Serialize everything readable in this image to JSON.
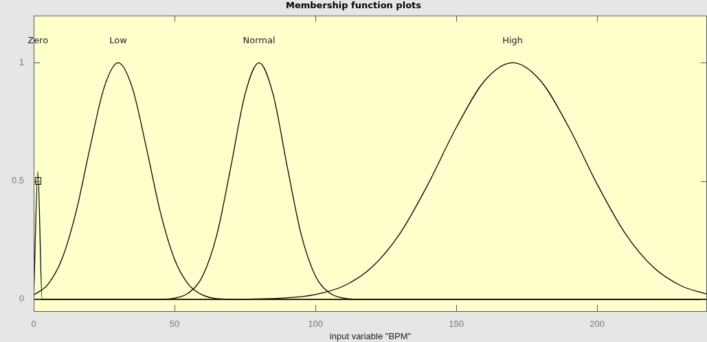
{
  "chart_data": {
    "type": "line",
    "title": "Membership function plots",
    "xlabel": "input variable \"BPM\"",
    "xlim": [
      0,
      239
    ],
    "xticks": [
      0,
      50,
      100,
      150,
      200
    ],
    "ylim": [
      -0.05,
      1.2
    ],
    "yticks": [
      0,
      0.5,
      1
    ],
    "grid": false,
    "legend": false,
    "marker": "none",
    "line_style": "solid",
    "series": [
      {
        "color": "#000000",
        "x": [
          0,
          1.5,
          3,
          239
        ],
        "values": [
          0,
          0.54,
          0,
          0
        ]
      },
      {
        "color": "#000000",
        "x": [
          0,
          5,
          10,
          15,
          20,
          25,
          30,
          35,
          40,
          45,
          50,
          55,
          60,
          70,
          80,
          100,
          150,
          239
        ],
        "values": [
          0.018,
          0.062,
          0.169,
          0.367,
          0.641,
          0.895,
          1,
          0.895,
          0.641,
          0.367,
          0.169,
          0.062,
          0.018,
          0,
          0,
          0,
          0,
          0
        ]
      },
      {
        "color": "#000000",
        "x": [
          0,
          30,
          40,
          45,
          50,
          55,
          60,
          65,
          70,
          75,
          80,
          85,
          90,
          95,
          100,
          105,
          110,
          115,
          120,
          239
        ],
        "values": [
          0,
          0,
          0,
          0,
          0.005,
          0.027,
          0.099,
          0.272,
          0.561,
          0.866,
          1,
          0.866,
          0.561,
          0.272,
          0.099,
          0.027,
          0.005,
          0,
          0,
          0
        ]
      },
      {
        "color": "#000000",
        "x": [
          0,
          70,
          90,
          100,
          110,
          120,
          130,
          140,
          150,
          160,
          170,
          180,
          190,
          200,
          210,
          220,
          230,
          239
        ],
        "values": [
          0,
          0,
          0.006,
          0.02,
          0.056,
          0.135,
          0.278,
          0.487,
          0.726,
          0.923,
          1,
          0.923,
          0.726,
          0.487,
          0.278,
          0.135,
          0.056,
          0.022
        ]
      }
    ],
    "annotations": [
      "Zero",
      "Low",
      "Normal",
      "High"
    ]
  }
}
